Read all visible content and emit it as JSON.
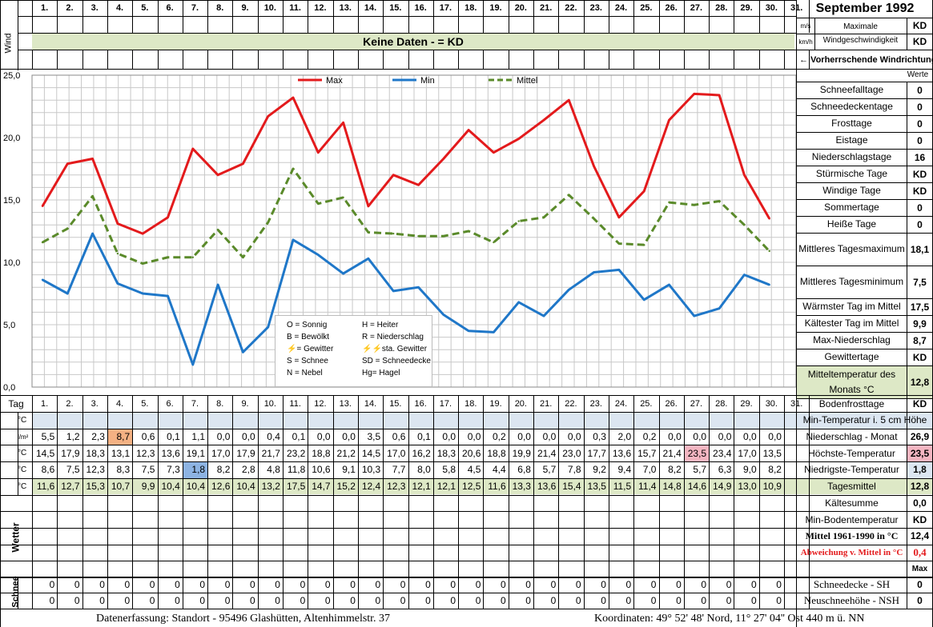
{
  "header": {
    "month_title": "September 1992",
    "wind_label": "Wind",
    "unit_ms": "m/s",
    "unit_kmh": "km/h",
    "max_wind_label_1": "Maximale",
    "max_wind_label_2": "Windgeschwindigkeit",
    "max_wind_value_ms": "KD",
    "max_wind_value_kmh": "KD",
    "no_data_text": "Keine Daten -  = KD",
    "prevailing_wind_text": "← Vorherrschende Windrichtung"
  },
  "days": [
    "1.",
    "2.",
    "3.",
    "4.",
    "5.",
    "6.",
    "7.",
    "8.",
    "9.",
    "10.",
    "11.",
    "12.",
    "13.",
    "14.",
    "15.",
    "16.",
    "17.",
    "18.",
    "19.",
    "20.",
    "21.",
    "22.",
    "23.",
    "24.",
    "25.",
    "26.",
    "27.",
    "28.",
    "29.",
    "30.",
    "31."
  ],
  "chart_data": {
    "type": "line",
    "x": [
      "1",
      "2",
      "3",
      "4",
      "5",
      "6",
      "7",
      "8",
      "9",
      "10",
      "11",
      "12",
      "13",
      "14",
      "15",
      "16",
      "17",
      "18",
      "19",
      "20",
      "21",
      "22",
      "23",
      "24",
      "25",
      "26",
      "27",
      "28",
      "29",
      "30"
    ],
    "series": [
      {
        "name": "Max",
        "color": "#e31a1c",
        "values": [
          14.5,
          17.9,
          18.3,
          13.1,
          12.3,
          13.6,
          19.1,
          17.0,
          17.9,
          21.7,
          23.2,
          18.8,
          21.2,
          14.5,
          17.0,
          16.2,
          18.3,
          20.6,
          18.8,
          19.9,
          21.4,
          23.0,
          17.7,
          13.6,
          15.7,
          21.4,
          23.5,
          23.4,
          17.0,
          13.5
        ]
      },
      {
        "name": "Min",
        "color": "#1f77c8",
        "values": [
          8.6,
          7.5,
          12.3,
          8.3,
          7.5,
          7.3,
          1.8,
          8.2,
          2.8,
          4.8,
          11.8,
          10.6,
          9.1,
          10.3,
          7.7,
          8.0,
          5.8,
          4.5,
          4.4,
          6.8,
          5.7,
          7.8,
          9.2,
          9.4,
          7.0,
          8.2,
          5.7,
          6.3,
          9.0,
          8.2
        ]
      },
      {
        "name": "Mittel",
        "color": "#5a8a2a",
        "values": [
          11.6,
          12.7,
          15.3,
          10.7,
          9.9,
          10.4,
          10.4,
          12.6,
          10.4,
          13.2,
          17.5,
          14.7,
          15.2,
          12.4,
          12.3,
          12.1,
          12.1,
          12.5,
          11.6,
          13.3,
          13.6,
          15.4,
          13.5,
          11.5,
          11.4,
          14.8,
          14.6,
          14.9,
          13.0,
          10.9
        ]
      }
    ],
    "yticks": [
      "0,0",
      "5,0",
      "10,0",
      "15,0",
      "20,0",
      "25,0"
    ],
    "ylim": [
      0,
      25
    ],
    "grid": true,
    "legend": "top"
  },
  "weather_legend": [
    [
      "O = Sonnig",
      "H = Heiter"
    ],
    [
      "B = Bewölkt",
      "R = Niederschlag"
    ],
    [
      "= Gewitter",
      "sta. Gewitter"
    ],
    [
      "S = Schnee",
      "SD = Schneedecke"
    ],
    [
      "N = Nebel",
      "Hg= Hagel"
    ]
  ],
  "right_panel": {
    "werte_label": "Werte",
    "rows": [
      {
        "label": "Schneefalltage",
        "value": "0"
      },
      {
        "label": "Schneedeckentage",
        "value": "0"
      },
      {
        "label": "Frosttage",
        "value": "0"
      },
      {
        "label": "Eistage",
        "value": "0"
      },
      {
        "label": "Niederschlagstage",
        "value": "16"
      },
      {
        "label": "Stürmische Tage",
        "value": "KD"
      },
      {
        "label": "Windige Tage",
        "value": "KD"
      },
      {
        "label": "Sommertage",
        "value": "0"
      },
      {
        "label": "Heiße Tage",
        "value": "0"
      },
      {
        "label": "Mittleres Tagesmaximum",
        "value": "18,1"
      },
      {
        "label": "Mittleres Tagesminimum",
        "value": "7,5"
      },
      {
        "label": "Wärmster Tag im Mittel",
        "value": "17,5"
      },
      {
        "label": "Kältester Tag im Mittel",
        "value": "9,9"
      },
      {
        "label": "Max-Niederschlag",
        "value": "8,7"
      },
      {
        "label": "Gewittertage",
        "value": "KD"
      },
      {
        "label": "Mitteltemperatur des Monats °C",
        "value": "12,8"
      },
      {
        "label": "Bodenfrosttage",
        "value": "KD"
      }
    ]
  },
  "table": {
    "tag_label": "Tag",
    "min_temp_5cm_label": "Min-Temperatur i. 5 cm Höhe",
    "rows": [
      {
        "unit": "°C",
        "values": []
      },
      {
        "unit": "l/m²",
        "label": "Niederschlag - Monat",
        "total": "26,9",
        "values": [
          "5,5",
          "1,2",
          "2,3",
          "8,7",
          "0,6",
          "0,1",
          "1,1",
          "0,0",
          "0,0",
          "0,4",
          "0,1",
          "0,0",
          "0,0",
          "3,5",
          "0,6",
          "0,1",
          "0,0",
          "0,0",
          "0,2",
          "0,0",
          "0,0",
          "0,0",
          "0,3",
          "2,0",
          "0,2",
          "0,0",
          "0,0",
          "0,0",
          "0,0",
          "0,0"
        ]
      },
      {
        "unit": "°C",
        "label": "Höchste-Temperatur",
        "total": "23,5",
        "values": [
          "14,5",
          "17,9",
          "18,3",
          "13,1",
          "12,3",
          "13,6",
          "19,1",
          "17,0",
          "17,9",
          "21,7",
          "23,2",
          "18,8",
          "21,2",
          "14,5",
          "17,0",
          "16,2",
          "18,3",
          "20,6",
          "18,8",
          "19,9",
          "21,4",
          "23,0",
          "17,7",
          "13,6",
          "15,7",
          "21,4",
          "23,5",
          "23,4",
          "17,0",
          "13,5"
        ]
      },
      {
        "unit": "°C",
        "label": "Niedrigste-Temperatur",
        "total": "1,8",
        "values": [
          "8,6",
          "7,5",
          "12,3",
          "8,3",
          "7,5",
          "7,3",
          "1,8",
          "8,2",
          "2,8",
          "4,8",
          "11,8",
          "10,6",
          "9,1",
          "10,3",
          "7,7",
          "8,0",
          "5,8",
          "4,5",
          "4,4",
          "6,8",
          "5,7",
          "7,8",
          "9,2",
          "9,4",
          "7,0",
          "8,2",
          "5,7",
          "6,3",
          "9,0",
          "8,2"
        ]
      },
      {
        "unit": "°C",
        "label": "Tagesmittel",
        "total": "12,8",
        "values": [
          "11,6",
          "12,7",
          "15,3",
          "10,7",
          "9,9",
          "10,4",
          "10,4",
          "12,6",
          "10,4",
          "13,2",
          "17,5",
          "14,7",
          "15,2",
          "12,4",
          "12,3",
          "12,1",
          "12,1",
          "12,5",
          "11,6",
          "13,3",
          "13,6",
          "15,4",
          "13,5",
          "11,5",
          "11,4",
          "14,8",
          "14,6",
          "14,9",
          "13,0",
          "10,9"
        ]
      }
    ],
    "extra_rows": [
      {
        "label": "Kältesumme",
        "value": "0,0"
      },
      {
        "label": "Min-Bodentemperatur",
        "value": "KD"
      },
      {
        "label": "Mittel 1961-1990 in °C",
        "value": "12,4"
      },
      {
        "label": "Abweichung v. Mittel in °C",
        "value": "0,4"
      },
      {
        "label": "",
        "value": "Max"
      }
    ],
    "wetter_label": "Wetter",
    "schnee_label": "Schnee",
    "snow_rows": [
      {
        "label": "Schneedecke -   SH",
        "value": "0",
        "values": [
          "0",
          "0",
          "0",
          "0",
          "0",
          "0",
          "0",
          "0",
          "0",
          "0",
          "0",
          "0",
          "0",
          "0",
          "0",
          "0",
          "0",
          "0",
          "0",
          "0",
          "0",
          "0",
          "0",
          "0",
          "0",
          "0",
          "0",
          "0",
          "0",
          "0"
        ]
      },
      {
        "label": "Neuschneehöhe - NSH",
        "value": "0",
        "values": [
          "0",
          "0",
          "0",
          "0",
          "0",
          "0",
          "0",
          "0",
          "0",
          "0",
          "0",
          "0",
          "0",
          "0",
          "0",
          "0",
          "0",
          "0",
          "0",
          "0",
          "0",
          "0",
          "0",
          "0",
          "0",
          "0",
          "0",
          "0",
          "0",
          "0"
        ]
      }
    ]
  },
  "footer": {
    "left": "Datenerfassung:  Standort -  95496  Glashütten, Altenhimmelstr. 37",
    "right": "Koordinaten:  49° 52' 48' Nord,  11° 27' 04'' Ost   440 m ü. NN"
  },
  "colors": {
    "light_green": "#dde8c6",
    "light_blue": "#dce6f1",
    "highlight_orange": "#f4b183",
    "highlight_blue": "#8db3e2",
    "highlight_pink": "#f4b6c2",
    "red_line": "#e31a1c"
  }
}
